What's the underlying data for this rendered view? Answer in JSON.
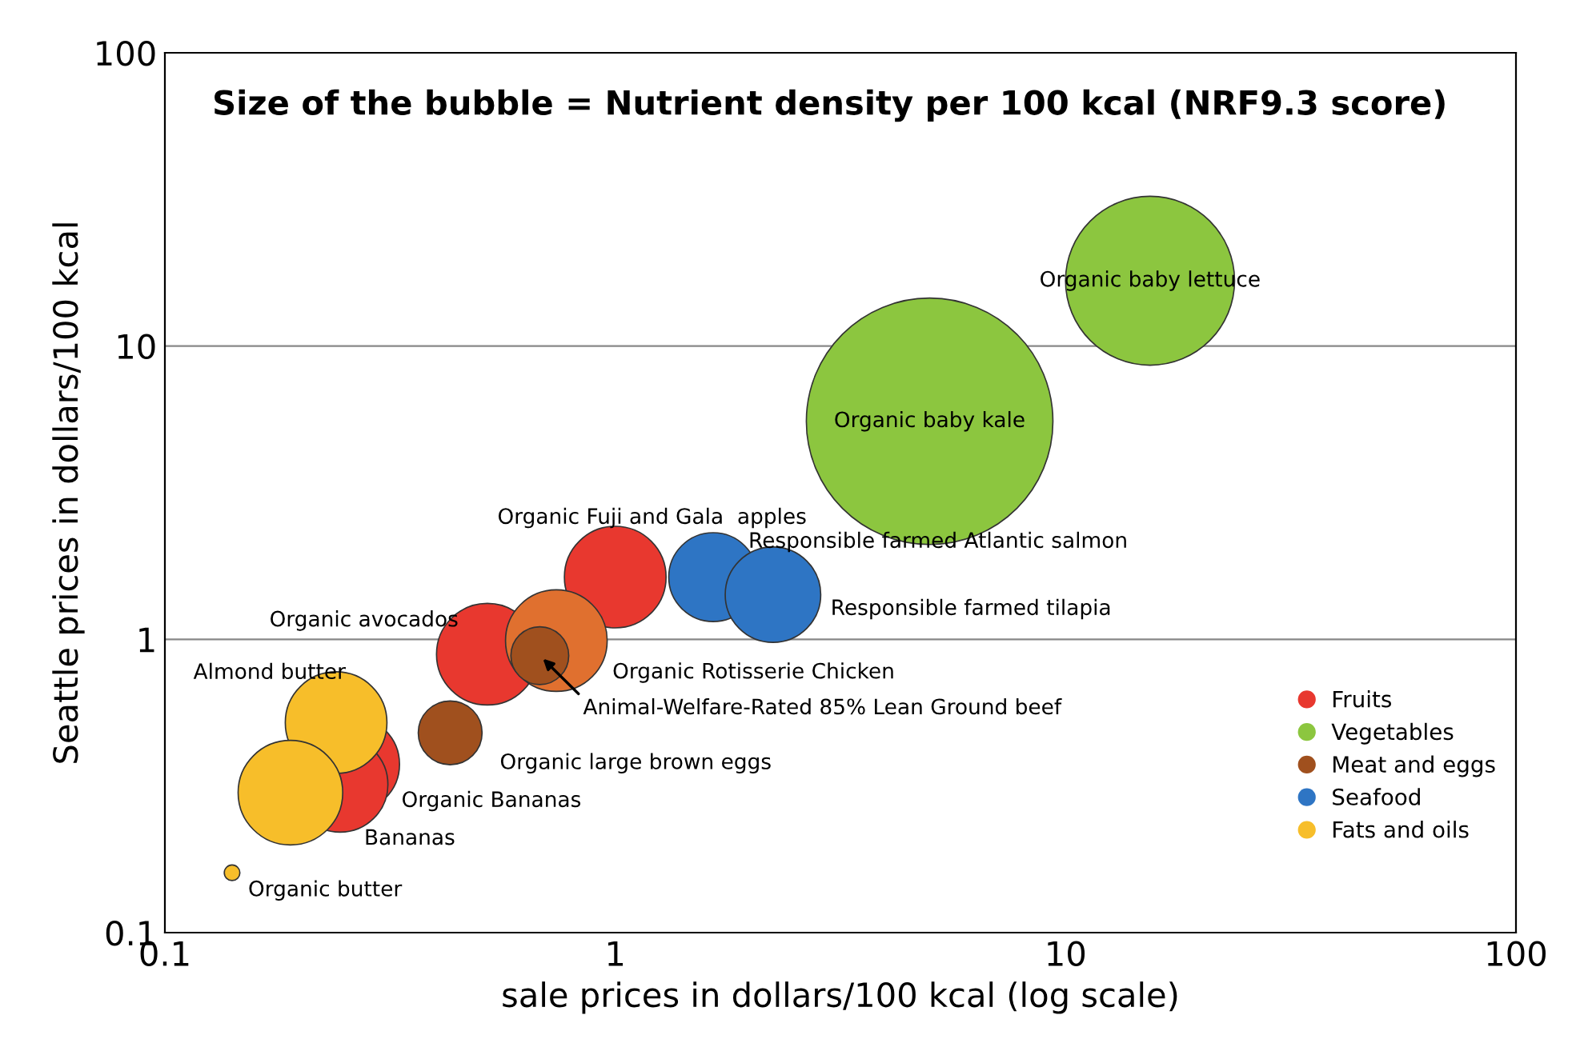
{
  "chart_data": {
    "type": "bubble",
    "title": "Size of the bubble = Nutrient density per 100 kcal (NRF9.3 score)",
    "xlabel": "sale prices in dollars/100 kcal (log scale)",
    "ylabel": "Seattle prices in dollars/100 kcal",
    "log": "xy",
    "xlim": [
      0.1,
      100
    ],
    "ylim": [
      0.1,
      100
    ],
    "xticks": [
      0.1,
      1,
      10,
      100
    ],
    "yticks": [
      0.1,
      1,
      10,
      100
    ],
    "grid": "y",
    "legend": "lower right",
    "series": [
      {
        "name": "Fruits",
        "color": "#e8382f",
        "x": [
          1.0,
          0.52,
          0.26,
          0.245
        ],
        "values": [
          1.63,
          0.89,
          0.375,
          0.32
        ],
        "sizes": [
          0.17,
          0.17,
          0.15,
          0.15
        ]
      },
      {
        "name": "Vegetables",
        "color": "#8cc63f",
        "x": [
          15.4,
          4.99
        ],
        "values": [
          16.7,
          5.54
        ],
        "sizes": [
          0.47,
          1
        ]
      },
      {
        "name": "Meat and eggs",
        "color": "#a0501e",
        "colors": [
          "#e0702f",
          "#a0501e",
          "#a0501e"
        ],
        "x": [
          0.74,
          0.68,
          0.43
        ],
        "values": [
          0.99,
          0.88,
          0.48
        ],
        "sizes": [
          0.17,
          0.055,
          0.067
        ]
      },
      {
        "name": "Seafood",
        "color": "#2e75c4",
        "x": [
          1.65,
          2.24
        ],
        "values": [
          1.63,
          1.42
        ],
        "sizes": [
          0.13,
          0.15
        ]
      },
      {
        "name": "Fats and oils",
        "color": "#f7be2a",
        "x": [
          0.24,
          0.19,
          0.141
        ],
        "values": [
          0.52,
          0.3,
          0.16
        ],
        "sizes": [
          0.17,
          0.18,
          0.004
        ]
      }
    ],
    "annotations": [
      {
        "text": "Organic baby lettuce",
        "x": 15.4,
        "y": 16.7
      },
      {
        "text": "Organic baby kale",
        "x": 4.99,
        "y": 5.54
      },
      {
        "text": "Organic Fuji and Gala  apples",
        "x": 1.0,
        "y": 1.63
      },
      {
        "text": "Responsible farmed Atlantic salmon",
        "x": 1.65,
        "y": 1.63
      },
      {
        "text": "Responsible farmed tilapia",
        "x": 2.24,
        "y": 1.42
      },
      {
        "text": "Organic avocados",
        "x": 0.52,
        "y": 0.89
      },
      {
        "text": "Organic Rotisserie Chicken",
        "x": 0.74,
        "y": 0.99
      },
      {
        "text": "Animal-Welfare-Rated 85% Lean Ground beef",
        "x": 0.68,
        "y": 0.88
      },
      {
        "text": "Organic large brown eggs",
        "x": 0.43,
        "y": 0.48
      },
      {
        "text": "Almond butter",
        "x": 0.24,
        "y": 0.52
      },
      {
        "text": "Organic Bananas",
        "x": 0.26,
        "y": 0.375
      },
      {
        "text": "Bananas",
        "x": 0.245,
        "y": 0.32
      },
      {
        "text": "Organic butter",
        "x": 0.141,
        "y": 0.16
      }
    ]
  }
}
